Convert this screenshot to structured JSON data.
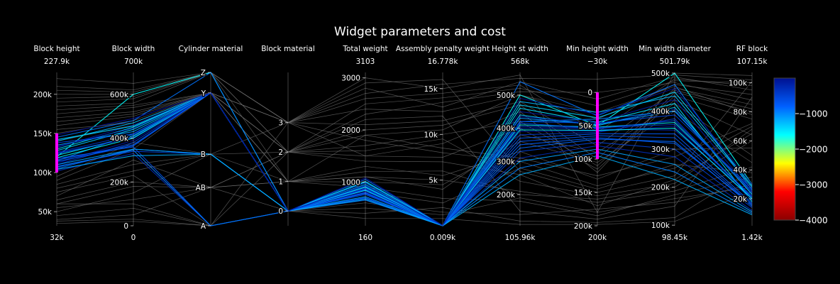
{
  "chart_data": {
    "type": "parcoords",
    "title": "Widget parameters and cost",
    "dimensions": [
      {
        "label": "Block height",
        "range": [
          32000,
          227900
        ],
        "min_label": "32k",
        "max_label": "227.9k",
        "ticks": [
          {
            "v": 50000,
            "t": "50k"
          },
          {
            "v": 100000,
            "t": "100k"
          },
          {
            "v": 150000,
            "t": "150k"
          },
          {
            "v": 200000,
            "t": "200k"
          }
        ],
        "constraint": [
          100000,
          150000
        ]
      },
      {
        "label": "Block width",
        "range": [
          0,
          700000
        ],
        "min_label": "0",
        "max_label": "700k",
        "ticks": [
          {
            "v": 0,
            "t": "0"
          },
          {
            "v": 200000,
            "t": "200k"
          },
          {
            "v": 400000,
            "t": "400k"
          },
          {
            "v": 600000,
            "t": "600k"
          }
        ]
      },
      {
        "label": "Cylinder material",
        "range": [
          0,
          3
        ],
        "min_label": "",
        "max_label": "",
        "ticks": [
          {
            "v": 0,
            "t": "A"
          },
          {
            "v": 0.75,
            "t": "AB"
          },
          {
            "v": 1.4,
            "t": "B"
          },
          {
            "v": 2.6,
            "t": "Y"
          },
          {
            "v": 3,
            "t": "Z"
          }
        ]
      },
      {
        "label": "Block material",
        "range": [
          -0.5,
          4.7
        ],
        "min_label": "",
        "max_label": "",
        "ticks": [
          {
            "v": 0,
            "t": "0"
          },
          {
            "v": 1,
            "t": "1"
          },
          {
            "v": 2,
            "t": "2"
          },
          {
            "v": 3,
            "t": "3"
          }
        ]
      },
      {
        "label": "Total weight",
        "range": [
          160,
          3103
        ],
        "min_label": "160",
        "max_label": "3103",
        "ticks": [
          {
            "v": 1000,
            "t": "1000"
          },
          {
            "v": 2000,
            "t": "2000"
          },
          {
            "v": 3000,
            "t": "3000"
          }
        ]
      },
      {
        "label": "Assembly penalty weight",
        "range": [
          9,
          16778
        ],
        "min_label": "0.009k",
        "max_label": "16.778k",
        "ticks": [
          {
            "v": 5000,
            "t": "5k"
          },
          {
            "v": 10000,
            "t": "10k"
          },
          {
            "v": 15000,
            "t": "15k"
          }
        ]
      },
      {
        "label": "Height st width",
        "range": [
          105960,
          568000
        ],
        "min_label": "105.96k",
        "max_label": "568k",
        "ticks": [
          {
            "v": 200000,
            "t": "200k"
          },
          {
            "v": 300000,
            "t": "300k"
          },
          {
            "v": 400000,
            "t": "400k"
          },
          {
            "v": 500000,
            "t": "500k"
          }
        ]
      },
      {
        "label": "Min height width",
        "range": [
          -30000,
          200000
        ],
        "reversed": true,
        "min_label": "200k",
        "max_label": "−30k",
        "ticks": [
          {
            "v": 0,
            "t": "0"
          },
          {
            "v": 50000,
            "t": "50k"
          },
          {
            "v": 100000,
            "t": "100k"
          },
          {
            "v": 150000,
            "t": "150k"
          },
          {
            "v": 200000,
            "t": "200k"
          }
        ],
        "constraint": [
          0,
          100000
        ]
      },
      {
        "label": "Min width diameter",
        "range": [
          98450,
          501790
        ],
        "min_label": "98.45k",
        "max_label": "501.79k",
        "ticks": [
          {
            "v": 100000,
            "t": "100k"
          },
          {
            "v": 200000,
            "t": "200k"
          },
          {
            "v": 300000,
            "t": "300k"
          },
          {
            "v": 400000,
            "t": "400k"
          },
          {
            "v": 500000,
            "t": "500k"
          }
        ]
      },
      {
        "label": "RF block",
        "range": [
          1420,
          107150
        ],
        "min_label": "1.42k",
        "max_label": "107.15k",
        "ticks": [
          {
            "v": 20000,
            "t": "20k"
          },
          {
            "v": 40000,
            "t": "40k"
          },
          {
            "v": 60000,
            "t": "60k"
          },
          {
            "v": 80000,
            "t": "80k"
          },
          {
            "v": 100000,
            "t": "100k"
          }
        ]
      }
    ],
    "colorscale": {
      "range": [
        -4000,
        0
      ],
      "ticks": [
        {
          "v": -1000,
          "t": "−1000"
        },
        {
          "v": -2000,
          "t": "−2000"
        },
        {
          "v": -3000,
          "t": "−3000"
        },
        {
          "v": -4000,
          "t": "−4000"
        }
      ],
      "stops": [
        "#8b0000",
        "#ff0000",
        "#ffff00",
        "#00ffff",
        "#0060ff",
        "#001090"
      ]
    },
    "colors": {
      "background": "#000000",
      "unselected_line": "#6e6e6e",
      "constraint_bar": "#ff00ff",
      "axis": "#ffffff"
    },
    "selected_lines": [
      [
        120000,
        600000,
        3.0,
        0,
        900,
        20,
        500000,
        50000,
        500000,
        30000
      ],
      [
        115000,
        420000,
        2.6,
        0,
        850,
        30,
        420000,
        40000,
        400000,
        25000
      ],
      [
        110000,
        380000,
        2.6,
        0,
        800,
        15,
        380000,
        60000,
        380000,
        20000
      ],
      [
        130000,
        450000,
        2.6,
        0,
        950,
        40,
        460000,
        45000,
        420000,
        18000
      ],
      [
        105000,
        350000,
        1.4,
        0,
        700,
        10,
        340000,
        70000,
        320000,
        15000
      ],
      [
        125000,
        400000,
        2.6,
        0,
        880,
        25,
        400000,
        55000,
        350000,
        22000
      ],
      [
        140000,
        470000,
        2.6,
        0,
        1000,
        35,
        480000,
        30000,
        440000,
        28000
      ],
      [
        118000,
        360000,
        0,
        0,
        760,
        18,
        360000,
        65000,
        330000,
        16000
      ],
      [
        112000,
        390000,
        2.6,
        0,
        820,
        22,
        390000,
        58000,
        360000,
        19000
      ],
      [
        135000,
        430000,
        2.6,
        0,
        920,
        28,
        430000,
        48000,
        400000,
        24000
      ],
      [
        108000,
        340000,
        1.4,
        0,
        690,
        12,
        330000,
        75000,
        300000,
        14000
      ],
      [
        122000,
        410000,
        2.6,
        0,
        860,
        20,
        410000,
        52000,
        370000,
        21000
      ],
      [
        145000,
        480000,
        3.0,
        0,
        1050,
        45,
        540000,
        35000,
        470000,
        26000
      ],
      [
        102000,
        330000,
        0,
        0,
        650,
        9,
        310000,
        80000,
        280000,
        12000
      ],
      [
        128000,
        440000,
        2.6,
        0,
        900,
        30,
        440000,
        50000,
        410000,
        23000
      ],
      [
        116000,
        370000,
        2.6,
        0,
        780,
        16,
        370000,
        62000,
        340000,
        17000
      ],
      [
        132000,
        460000,
        2.6,
        0,
        940,
        33,
        450000,
        44000,
        430000,
        25000
      ],
      [
        110000,
        350000,
        1.4,
        0,
        720,
        14,
        300000,
        85000,
        260000,
        11000
      ],
      [
        138000,
        420000,
        2.6,
        0,
        980,
        38,
        420000,
        46000,
        390000,
        27000
      ],
      [
        119000,
        400000,
        2.6,
        0,
        840,
        21,
        395000,
        57000,
        355000,
        20000
      ],
      [
        107000,
        345000,
        0,
        0,
        680,
        11,
        280000,
        90000,
        240000,
        10000
      ],
      [
        126000,
        415000,
        2.6,
        0,
        870,
        26,
        405000,
        53000,
        365000,
        22000
      ],
      [
        142000,
        455000,
        2.6,
        0,
        1010,
        42,
        470000,
        38000,
        450000,
        29000
      ],
      [
        114000,
        365000,
        2.6,
        0,
        790,
        17,
        350000,
        68000,
        315000,
        16000
      ],
      [
        133000,
        445000,
        2.6,
        0,
        930,
        31,
        435000,
        47000,
        405000,
        24000
      ],
      [
        104000,
        320000,
        1.4,
        0,
        660,
        10,
        260000,
        95000,
        220000,
        9000
      ],
      [
        124000,
        405000,
        2.6,
        0,
        855,
        23,
        415000,
        54000,
        375000,
        21000
      ],
      [
        148000,
        490000,
        2.6,
        0,
        1080,
        48,
        490000,
        33000,
        460000,
        30000
      ]
    ],
    "unselected_lines": [
      [
        220000,
        650000,
        3.0,
        3,
        3000,
        15000,
        560000,
        180000,
        500000,
        105000
      ],
      [
        60000,
        100000,
        0,
        2,
        2200,
        12000,
        150000,
        190000,
        150000,
        90000
      ],
      [
        180000,
        550000,
        2.6,
        3,
        1500,
        9000,
        450000,
        120000,
        450000,
        80000
      ],
      [
        40000,
        50000,
        0.75,
        1,
        1200,
        6000,
        200000,
        160000,
        200000,
        60000
      ],
      [
        200000,
        600000,
        3.0,
        2,
        2500,
        14000,
        520000,
        20000,
        480000,
        100000
      ],
      [
        80000,
        250000,
        1.4,
        3,
        1800,
        8000,
        300000,
        140000,
        250000,
        70000
      ],
      [
        160000,
        500000,
        2.6,
        1,
        1100,
        4000,
        380000,
        90000,
        420000,
        50000
      ],
      [
        35000,
        20000,
        0,
        0,
        400,
        2000,
        120000,
        195000,
        120000,
        40000
      ],
      [
        190000,
        580000,
        3.0,
        3,
        2800,
        13000,
        540000,
        10000,
        490000,
        95000
      ],
      [
        70000,
        300000,
        0.75,
        2,
        1400,
        7000,
        260000,
        170000,
        220000,
        65000
      ],
      [
        170000,
        520000,
        2.6,
        2,
        2000,
        11000,
        470000,
        100000,
        460000,
        85000
      ],
      [
        50000,
        150000,
        1.4,
        1,
        900,
        3000,
        180000,
        185000,
        180000,
        35000
      ],
      [
        210000,
        620000,
        3.0,
        3,
        2700,
        15500,
        550000,
        -20000,
        495000,
        102000
      ],
      [
        90000,
        350000,
        2.6,
        1,
        1300,
        5500,
        330000,
        130000,
        300000,
        55000
      ],
      [
        150000,
        480000,
        2.6,
        2,
        1700,
        10000,
        420000,
        110000,
        440000,
        75000
      ],
      [
        45000,
        80000,
        0,
        0,
        600,
        1500,
        140000,
        175000,
        160000,
        30000
      ],
      [
        185000,
        560000,
        3.0,
        3,
        2400,
        12500,
        500000,
        40000,
        470000,
        92000
      ],
      [
        65000,
        200000,
        0.75,
        2,
        1600,
        9500,
        240000,
        155000,
        210000,
        68000
      ],
      [
        155000,
        470000,
        2.6,
        1,
        1000,
        4500,
        360000,
        105000,
        400000,
        45000
      ],
      [
        38000,
        30000,
        0,
        0,
        300,
        800,
        110000,
        198000,
        110000,
        25000
      ],
      [
        175000,
        540000,
        2.6,
        3,
        2600,
        14500,
        530000,
        60000,
        485000,
        98000
      ],
      [
        95000,
        380000,
        1.4,
        2,
        1900,
        8500,
        310000,
        125000,
        280000,
        72000
      ],
      [
        205000,
        610000,
        3.0,
        2,
        2300,
        13500,
        510000,
        0,
        475000,
        88000
      ],
      [
        55000,
        120000,
        0.75,
        1,
        1100,
        5000,
        210000,
        165000,
        190000,
        42000
      ],
      [
        165000,
        510000,
        2.6,
        3,
        2100,
        11500,
        480000,
        80000,
        455000,
        82000
      ],
      [
        85000,
        280000,
        1.4,
        0,
        800,
        2500,
        280000,
        145000,
        260000,
        38000
      ],
      [
        195000,
        590000,
        3.0,
        1,
        1900,
        10500,
        500000,
        30000,
        465000,
        78000
      ],
      [
        75000,
        230000,
        0,
        3,
        2900,
        16000,
        270000,
        150000,
        230000,
        101000
      ],
      [
        140000,
        460000,
        2.6,
        2,
        1500,
        7500,
        400000,
        115000,
        430000,
        64000
      ],
      [
        60000,
        180000,
        0.75,
        0,
        500,
        1200,
        190000,
        180000,
        170000,
        28000
      ]
    ]
  }
}
